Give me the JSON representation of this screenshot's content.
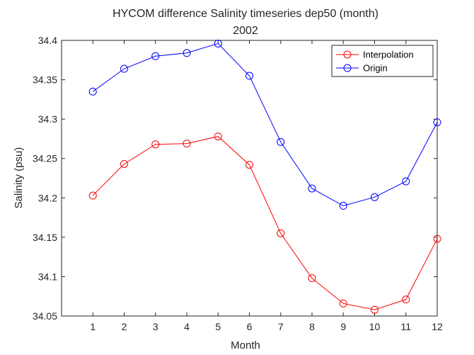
{
  "chart_data": {
    "type": "line",
    "title": "HYCOM difference Salinity timeseries dep50 (month)",
    "subtitle": "2002",
    "xlabel": "Month",
    "ylabel": "Salinity (psu)",
    "xlim": [
      0,
      12
    ],
    "ylim": [
      34.05,
      34.4
    ],
    "x": [
      1,
      2,
      3,
      4,
      5,
      6,
      7,
      8,
      9,
      10,
      11,
      12
    ],
    "x_ticks": [
      "1",
      "2",
      "3",
      "4",
      "5",
      "6",
      "7",
      "8",
      "9",
      "10",
      "11",
      "12"
    ],
    "y_ticks": [
      "34.05",
      "34.1",
      "34.15",
      "34.2",
      "34.25",
      "34.3",
      "34.35",
      "34.4"
    ],
    "y_tick_values": [
      34.05,
      34.1,
      34.15,
      34.2,
      34.25,
      34.3,
      34.35,
      34.4
    ],
    "grid": false,
    "legend_position": "top-right",
    "marker": "circle",
    "series": [
      {
        "name": "Interpolation",
        "color": "#ff0000",
        "values": [
          34.203,
          34.243,
          34.268,
          34.269,
          34.278,
          34.242,
          34.155,
          34.098,
          34.066,
          34.058,
          34.071,
          34.148
        ]
      },
      {
        "name": "Origin",
        "color": "#0000ff",
        "values": [
          34.335,
          34.364,
          34.38,
          34.384,
          34.396,
          34.355,
          34.271,
          34.212,
          34.19,
          34.201,
          34.221,
          34.296
        ]
      }
    ]
  }
}
